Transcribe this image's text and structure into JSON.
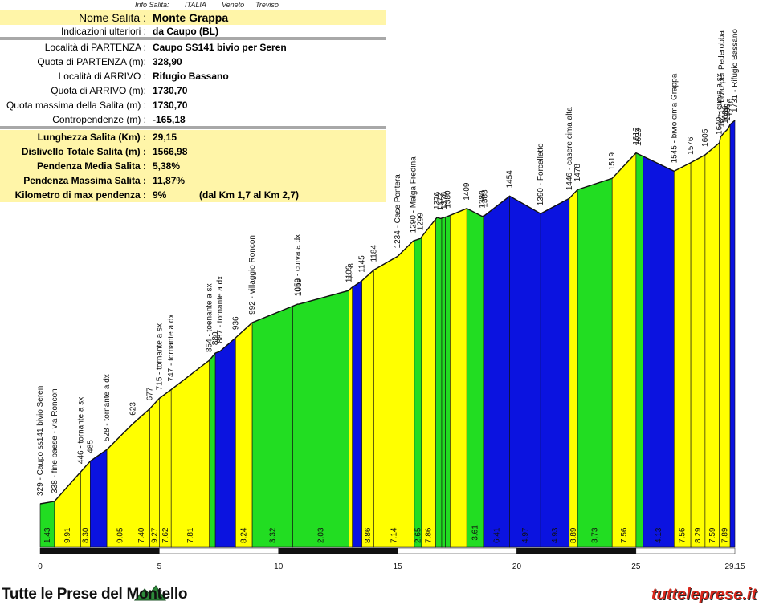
{
  "header": {
    "label": "Info Salita:",
    "country": "ITALIA",
    "region": "Veneto",
    "province": "Treviso"
  },
  "info": {
    "nome_label": "Nome Salita :",
    "nome": "Monte Grappa",
    "indicazioni_label": "Indicazioni ulteriori :",
    "indicazioni": "da Caupo (BL)",
    "partenza_label": "Località di PARTENZA :",
    "partenza": "Caupo SS141 bivio per Seren",
    "quota_partenza_label": "Quota di PARTENZA (m):",
    "quota_partenza": "328,90",
    "arrivo_label": "Località di ARRIVO :",
    "arrivo": "Rifugio Bassano",
    "quota_arrivo_label": "Quota di ARRIVO (m):",
    "quota_arrivo": "1730,70",
    "quota_max_label": "Quota massima della Salita (m) :",
    "quota_max": "1730,70",
    "contropendenze_label": "Contropendenze (m) :",
    "contropendenze": "-165,18",
    "lunghezza_label": "Lunghezza Salita (Km) :",
    "lunghezza": "29,15",
    "dislivello_label": "Dislivello Totale Salita (m) :",
    "dislivello": "1566,98",
    "pend_media_label": "Pendenza Media Salita :",
    "pend_media": "5,38%",
    "pend_max_label": "Pendenza Massima Salita :",
    "pend_max": "11,87%",
    "km_max_label": "Kilometro di max pendenza :",
    "km_max": "9%",
    "km_max_note": "(dal Km 1,7 al Km 2,7)"
  },
  "footer": {
    "left": "Tutte le Prese del Montello",
    "right": "tutteleprese.it"
  },
  "colors": {
    "green": "#22dd22",
    "yellow": "#ffff00",
    "blue": "#0b13e0"
  },
  "chart_data": {
    "type": "area",
    "xlabel": "",
    "ylabel": "",
    "xlim": [
      0,
      29.15
    ],
    "ylim": [
      0,
      1730.7
    ],
    "x_ticks": [
      "0",
      "5",
      "10",
      "15",
      "20",
      "25",
      "29.15"
    ],
    "x_tick_values": [
      0,
      5,
      10,
      15,
      20,
      25,
      29.15
    ],
    "profile": [
      [
        0,
        329
      ],
      [
        0.6,
        338
      ],
      [
        1.7,
        446
      ],
      [
        2.1,
        485
      ],
      [
        2.8,
        528
      ],
      [
        3.9,
        623
      ],
      [
        4.6,
        677
      ],
      [
        5.0,
        715
      ],
      [
        5.5,
        747
      ],
      [
        7.1,
        854
      ],
      [
        7.35,
        880
      ],
      [
        7.55,
        887
      ],
      [
        8.2,
        936
      ],
      [
        8.9,
        992
      ],
      [
        10.8,
        1059
      ],
      [
        10.85,
        1059
      ],
      [
        12.95,
        1109
      ],
      [
        13.05,
        1118
      ],
      [
        13.5,
        1145
      ],
      [
        14.0,
        1184
      ],
      [
        15.0,
        1234
      ],
      [
        15.65,
        1290
      ],
      [
        15.95,
        1299
      ],
      [
        16.65,
        1376
      ],
      [
        16.8,
        1372
      ],
      [
        16.95,
        1376
      ],
      [
        17.1,
        1380
      ],
      [
        17.9,
        1409
      ],
      [
        18.55,
        1380
      ],
      [
        18.65,
        1383
      ],
      [
        19.7,
        1454
      ],
      [
        21.0,
        1390
      ],
      [
        22.2,
        1446
      ],
      [
        22.55,
        1478
      ],
      [
        24.0,
        1519
      ],
      [
        25.0,
        1612
      ],
      [
        26.6,
        1545
      ],
      [
        27.3,
        1576
      ],
      [
        27.9,
        1605
      ],
      [
        28.5,
        1649
      ],
      [
        28.55,
        1671
      ],
      [
        28.7,
        1686
      ],
      [
        28.85,
        1699
      ],
      [
        28.95,
        1716
      ],
      [
        29.15,
        1731
      ]
    ],
    "point_labels": [
      [
        0,
        "329 - Caupo ss141 bivio Seren"
      ],
      [
        0.6,
        "338 - fine paese - via Roncon"
      ],
      [
        1.7,
        "446 - tornante a sx"
      ],
      [
        2.1,
        "485"
      ],
      [
        2.8,
        "528 - tornante a dx"
      ],
      [
        3.9,
        "623"
      ],
      [
        4.6,
        "677"
      ],
      [
        5.0,
        "715 - tornante a sx"
      ],
      [
        5.5,
        "747 - tornante a dx"
      ],
      [
        7.1,
        "854 - toenante a sx"
      ],
      [
        7.35,
        "880"
      ],
      [
        7.55,
        "887 - tornante a dx"
      ],
      [
        8.2,
        "936"
      ],
      [
        8.9,
        "992 - villaggio Roncon"
      ],
      [
        10.8,
        "1059 - curva a dx"
      ],
      [
        10.85,
        "1059"
      ],
      [
        12.95,
        "1109"
      ],
      [
        13.05,
        "1118"
      ],
      [
        13.5,
        "1145"
      ],
      [
        14.0,
        "1184"
      ],
      [
        15.0,
        "1234 - Case Pontera"
      ],
      [
        15.65,
        "1290 - Malga Fredina"
      ],
      [
        15.95,
        "1299"
      ],
      [
        16.65,
        "1376"
      ],
      [
        16.8,
        "1372"
      ],
      [
        16.95,
        "1376"
      ],
      [
        17.1,
        "1380"
      ],
      [
        17.9,
        "1409"
      ],
      [
        18.55,
        "1380"
      ],
      [
        18.65,
        "1383"
      ],
      [
        19.7,
        "1454"
      ],
      [
        21.0,
        "1390 - Forcelletto"
      ],
      [
        22.2,
        "1446 - casere cima alta"
      ],
      [
        22.55,
        "1478"
      ],
      [
        24.0,
        "1519"
      ],
      [
        25.0,
        "1612"
      ],
      [
        25.1,
        "1620"
      ],
      [
        26.6,
        "1545 - bivio cima Grappa"
      ],
      [
        27.3,
        "1576"
      ],
      [
        27.9,
        "1605"
      ],
      [
        28.5,
        "1649 - curva a sx"
      ],
      [
        28.6,
        "1671 - bivio per Pederobba"
      ],
      [
        28.75,
        "1686"
      ],
      [
        28.85,
        "1699"
      ],
      [
        28.95,
        "1716"
      ],
      [
        29.15,
        "1731 - Rifugio Bassano"
      ]
    ],
    "segments": [
      {
        "from": 0,
        "to": 0.6,
        "grade": "1.43",
        "color": "green"
      },
      {
        "from": 0.6,
        "to": 1.7,
        "grade": "9.91",
        "color": "yellow"
      },
      {
        "from": 1.7,
        "to": 2.1,
        "grade": "8.30",
        "color": "yellow"
      },
      {
        "from": 2.1,
        "to": 2.8,
        "grade": "",
        "color": "blue"
      },
      {
        "from": 2.8,
        "to": 3.9,
        "grade": "9.05",
        "color": "yellow"
      },
      {
        "from": 3.9,
        "to": 4.6,
        "grade": "7.40",
        "color": "yellow"
      },
      {
        "from": 4.6,
        "to": 5.0,
        "grade": "9.27",
        "color": "yellow"
      },
      {
        "from": 5.0,
        "to": 5.5,
        "grade": "7.62",
        "color": "yellow"
      },
      {
        "from": 5.5,
        "to": 7.1,
        "grade": "7.81",
        "color": "yellow"
      },
      {
        "from": 7.1,
        "to": 7.35,
        "grade": "",
        "color": "green"
      },
      {
        "from": 7.35,
        "to": 8.2,
        "grade": "",
        "color": "blue"
      },
      {
        "from": 8.2,
        "to": 8.9,
        "grade": "8.24",
        "color": "yellow"
      },
      {
        "from": 8.9,
        "to": 10.6,
        "grade": "3.32",
        "color": "green"
      },
      {
        "from": 10.6,
        "to": 12.95,
        "grade": "2.03",
        "color": "green"
      },
      {
        "from": 12.95,
        "to": 13.1,
        "grade": "",
        "color": "yellow"
      },
      {
        "from": 13.1,
        "to": 13.5,
        "grade": "",
        "color": "blue"
      },
      {
        "from": 13.5,
        "to": 14.0,
        "grade": "8.86",
        "color": "yellow"
      },
      {
        "from": 14.0,
        "to": 15.7,
        "grade": "7.14",
        "color": "yellow"
      },
      {
        "from": 15.7,
        "to": 16.0,
        "grade": "2.65",
        "color": "green"
      },
      {
        "from": 16.0,
        "to": 16.6,
        "grade": "7.86",
        "color": "yellow"
      },
      {
        "from": 16.6,
        "to": 16.85,
        "grade": "",
        "color": "green"
      },
      {
        "from": 16.85,
        "to": 17.0,
        "grade": "",
        "color": "green"
      },
      {
        "from": 17.0,
        "to": 17.2,
        "grade": "",
        "color": "green"
      },
      {
        "from": 17.2,
        "to": 17.9,
        "grade": "",
        "color": "yellow"
      },
      {
        "from": 17.9,
        "to": 18.6,
        "grade": "-3.61",
        "color": "green"
      },
      {
        "from": 18.6,
        "to": 19.7,
        "grade": "6.41",
        "color": "blue"
      },
      {
        "from": 19.7,
        "to": 21.0,
        "grade": "4.97",
        "color": "blue"
      },
      {
        "from": 21.0,
        "to": 22.2,
        "grade": "4.93",
        "color": "blue"
      },
      {
        "from": 22.2,
        "to": 22.55,
        "grade": "8.89",
        "color": "yellow"
      },
      {
        "from": 22.55,
        "to": 24.0,
        "grade": "3.73",
        "color": "green"
      },
      {
        "from": 24.0,
        "to": 25.0,
        "grade": "7.56",
        "color": "yellow"
      },
      {
        "from": 25.0,
        "to": 25.3,
        "grade": "",
        "color": "green"
      },
      {
        "from": 25.3,
        "to": 26.6,
        "grade": "4.13",
        "color": "blue"
      },
      {
        "from": 26.6,
        "to": 27.3,
        "grade": "7.56",
        "color": "yellow"
      },
      {
        "from": 27.3,
        "to": 27.9,
        "grade": "8.29",
        "color": "yellow"
      },
      {
        "from": 27.9,
        "to": 28.5,
        "grade": "7.59",
        "color": "yellow"
      },
      {
        "from": 28.5,
        "to": 28.95,
        "grade": "7.89",
        "color": "yellow"
      },
      {
        "from": 28.95,
        "to": 29.15,
        "grade": "",
        "color": "blue"
      }
    ]
  }
}
